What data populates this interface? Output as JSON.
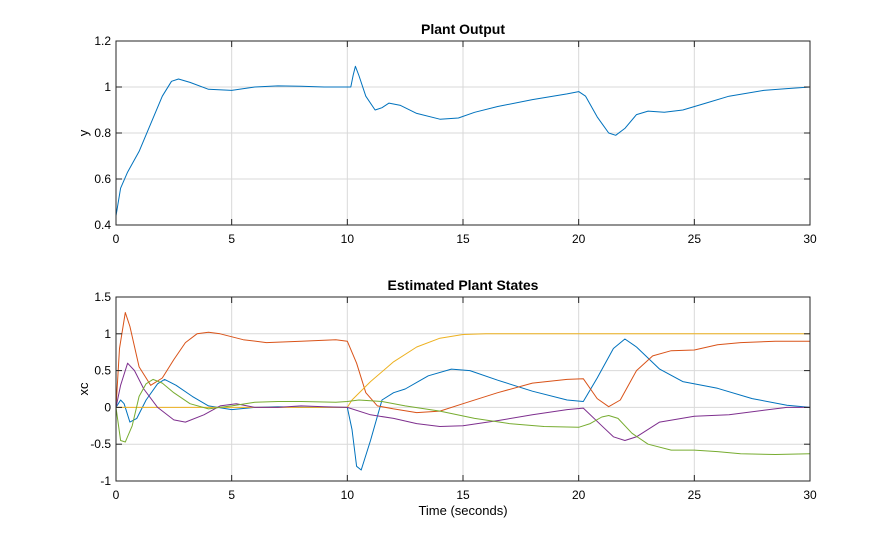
{
  "chart_data": [
    {
      "type": "line",
      "title": "Plant Output",
      "xlabel": "",
      "ylabel": "y",
      "xlim": [
        0,
        30
      ],
      "ylim": [
        0.4,
        1.2
      ],
      "xticks": [
        "0",
        "5",
        "10",
        "15",
        "20",
        "25",
        "30"
      ],
      "yticks": [
        "0.4",
        "0.6",
        "0.8",
        "1",
        "1.2"
      ],
      "grid": true,
      "series": [
        {
          "color": "#0072BD",
          "points": [
            [
              0,
              0.44
            ],
            [
              0.2,
              0.56
            ],
            [
              0.5,
              0.63
            ],
            [
              1.0,
              0.72
            ],
            [
              1.5,
              0.84
            ],
            [
              2.0,
              0.96
            ],
            [
              2.4,
              1.025
            ],
            [
              2.7,
              1.035
            ],
            [
              3.2,
              1.02
            ],
            [
              4.0,
              0.99
            ],
            [
              5.0,
              0.985
            ],
            [
              6.0,
              1.0
            ],
            [
              7.0,
              1.005
            ],
            [
              8.0,
              1.003
            ],
            [
              9.0,
              1.0
            ],
            [
              10.0,
              1.0
            ],
            [
              10.15,
              1.0
            ],
            [
              10.25,
              1.05
            ],
            [
              10.35,
              1.09
            ],
            [
              10.5,
              1.05
            ],
            [
              10.8,
              0.96
            ],
            [
              11.2,
              0.9
            ],
            [
              11.5,
              0.91
            ],
            [
              11.8,
              0.93
            ],
            [
              12.3,
              0.92
            ],
            [
              13.0,
              0.885
            ],
            [
              14.0,
              0.86
            ],
            [
              14.8,
              0.865
            ],
            [
              15.5,
              0.89
            ],
            [
              16.5,
              0.915
            ],
            [
              18.0,
              0.945
            ],
            [
              19.5,
              0.97
            ],
            [
              20.0,
              0.98
            ],
            [
              20.3,
              0.96
            ],
            [
              20.8,
              0.87
            ],
            [
              21.3,
              0.8
            ],
            [
              21.6,
              0.79
            ],
            [
              22.0,
              0.82
            ],
            [
              22.5,
              0.88
            ],
            [
              23.0,
              0.895
            ],
            [
              23.7,
              0.89
            ],
            [
              24.5,
              0.9
            ],
            [
              25.5,
              0.93
            ],
            [
              26.5,
              0.96
            ],
            [
              28.0,
              0.985
            ],
            [
              29.0,
              0.993
            ],
            [
              30.0,
              1.0
            ]
          ]
        }
      ]
    },
    {
      "type": "line",
      "title": "Estimated Plant States",
      "xlabel": "Time (seconds)",
      "ylabel": "xc",
      "xlim": [
        0,
        30
      ],
      "ylim": [
        -1,
        1.5
      ],
      "xticks": [
        "0",
        "5",
        "10",
        "15",
        "20",
        "25",
        "30"
      ],
      "yticks": [
        "-1",
        "-0.5",
        "0",
        "0.5",
        "1",
        "1.5"
      ],
      "grid": true,
      "series": [
        {
          "color": "#0072BD",
          "points": [
            [
              0,
              0
            ],
            [
              0.2,
              0.1
            ],
            [
              0.35,
              0.05
            ],
            [
              0.6,
              -0.2
            ],
            [
              0.9,
              -0.15
            ],
            [
              1.3,
              0.1
            ],
            [
              1.8,
              0.32
            ],
            [
              2.1,
              0.38
            ],
            [
              2.6,
              0.3
            ],
            [
              3.3,
              0.15
            ],
            [
              4.0,
              0.02
            ],
            [
              5.0,
              -0.03
            ],
            [
              6.0,
              0.0
            ],
            [
              7.0,
              0.01
            ],
            [
              8.0,
              0.0
            ],
            [
              9.0,
              0.0
            ],
            [
              10.0,
              0.0
            ],
            [
              10.2,
              -0.3
            ],
            [
              10.4,
              -0.8
            ],
            [
              10.6,
              -0.85
            ],
            [
              11.0,
              -0.45
            ],
            [
              11.5,
              0.1
            ],
            [
              12.0,
              0.2
            ],
            [
              12.5,
              0.25
            ],
            [
              13.5,
              0.43
            ],
            [
              14.5,
              0.52
            ],
            [
              15.3,
              0.5
            ],
            [
              16.5,
              0.37
            ],
            [
              18.0,
              0.22
            ],
            [
              19.5,
              0.1
            ],
            [
              20.2,
              0.08
            ],
            [
              20.8,
              0.4
            ],
            [
              21.5,
              0.8
            ],
            [
              22.0,
              0.93
            ],
            [
              22.5,
              0.82
            ],
            [
              23.5,
              0.52
            ],
            [
              24.5,
              0.35
            ],
            [
              26.0,
              0.26
            ],
            [
              27.5,
              0.12
            ],
            [
              29.0,
              0.03
            ],
            [
              30.0,
              0.0
            ]
          ]
        },
        {
          "color": "#D95319",
          "points": [
            [
              0,
              0
            ],
            [
              0.15,
              0.8
            ],
            [
              0.4,
              1.29
            ],
            [
              0.6,
              1.1
            ],
            [
              1.0,
              0.55
            ],
            [
              1.5,
              0.3
            ],
            [
              2.0,
              0.4
            ],
            [
              2.5,
              0.65
            ],
            [
              3.0,
              0.88
            ],
            [
              3.5,
              1.0
            ],
            [
              4.0,
              1.02
            ],
            [
              4.5,
              1.0
            ],
            [
              5.5,
              0.92
            ],
            [
              6.5,
              0.88
            ],
            [
              8.0,
              0.9
            ],
            [
              9.5,
              0.92
            ],
            [
              10.0,
              0.9
            ],
            [
              10.4,
              0.6
            ],
            [
              10.8,
              0.2
            ],
            [
              11.3,
              0.02
            ],
            [
              12.0,
              -0.02
            ],
            [
              13.0,
              -0.07
            ],
            [
              14.0,
              -0.05
            ],
            [
              15.0,
              0.05
            ],
            [
              16.5,
              0.2
            ],
            [
              18.0,
              0.33
            ],
            [
              19.5,
              0.38
            ],
            [
              20.2,
              0.39
            ],
            [
              20.8,
              0.12
            ],
            [
              21.3,
              0.01
            ],
            [
              21.8,
              0.1
            ],
            [
              22.5,
              0.5
            ],
            [
              23.2,
              0.7
            ],
            [
              24.0,
              0.77
            ],
            [
              25.0,
              0.78
            ],
            [
              26.0,
              0.85
            ],
            [
              27.0,
              0.88
            ],
            [
              28.5,
              0.9
            ],
            [
              30.0,
              0.9
            ]
          ]
        },
        {
          "color": "#EDB120",
          "points": [
            [
              0,
              0
            ],
            [
              10.0,
              0
            ],
            [
              10.2,
              0.1
            ],
            [
              11.0,
              0.35
            ],
            [
              12.0,
              0.62
            ],
            [
              13.0,
              0.82
            ],
            [
              14.0,
              0.94
            ],
            [
              15.0,
              0.99
            ],
            [
              16.0,
              1.0
            ],
            [
              20.0,
              1.0
            ],
            [
              25.0,
              1.0
            ],
            [
              30.0,
              1.0
            ]
          ]
        },
        {
          "color": "#7E2F8E",
          "points": [
            [
              0,
              0
            ],
            [
              0.2,
              0.3
            ],
            [
              0.5,
              0.6
            ],
            [
              0.8,
              0.5
            ],
            [
              1.2,
              0.25
            ],
            [
              1.8,
              0.0
            ],
            [
              2.5,
              -0.17
            ],
            [
              3.0,
              -0.2
            ],
            [
              3.8,
              -0.1
            ],
            [
              4.5,
              0.02
            ],
            [
              5.2,
              0.05
            ],
            [
              6.0,
              0.0
            ],
            [
              7.0,
              0.0
            ],
            [
              8.0,
              0.02
            ],
            [
              9.0,
              0.01
            ],
            [
              10.0,
              0.0
            ],
            [
              11.0,
              -0.1
            ],
            [
              12.0,
              -0.15
            ],
            [
              13.0,
              -0.22
            ],
            [
              14.0,
              -0.26
            ],
            [
              15.0,
              -0.25
            ],
            [
              16.5,
              -0.18
            ],
            [
              18.0,
              -0.1
            ],
            [
              19.5,
              -0.03
            ],
            [
              20.2,
              -0.01
            ],
            [
              21.0,
              -0.25
            ],
            [
              21.5,
              -0.4
            ],
            [
              22.0,
              -0.45
            ],
            [
              22.5,
              -0.4
            ],
            [
              23.5,
              -0.2
            ],
            [
              25.0,
              -0.12
            ],
            [
              26.5,
              -0.1
            ],
            [
              28.0,
              -0.04
            ],
            [
              29.0,
              0.0
            ],
            [
              30.0,
              0.0
            ]
          ]
        },
        {
          "color": "#77AC30",
          "points": [
            [
              0,
              0
            ],
            [
              0.2,
              -0.45
            ],
            [
              0.4,
              -0.47
            ],
            [
              0.7,
              -0.25
            ],
            [
              1.0,
              0.15
            ],
            [
              1.3,
              0.32
            ],
            [
              1.6,
              0.38
            ],
            [
              2.0,
              0.33
            ],
            [
              2.5,
              0.2
            ],
            [
              3.2,
              0.05
            ],
            [
              4.0,
              -0.02
            ],
            [
              5.0,
              0.02
            ],
            [
              6.0,
              0.07
            ],
            [
              7.0,
              0.08
            ],
            [
              8.0,
              0.08
            ],
            [
              9.5,
              0.07
            ],
            [
              10.0,
              0.08
            ],
            [
              10.5,
              0.1
            ],
            [
              11.5,
              0.08
            ],
            [
              12.5,
              0.02
            ],
            [
              14.0,
              -0.05
            ],
            [
              15.5,
              -0.15
            ],
            [
              17.0,
              -0.22
            ],
            [
              18.5,
              -0.26
            ],
            [
              20.0,
              -0.27
            ],
            [
              20.5,
              -0.22
            ],
            [
              21.0,
              -0.13
            ],
            [
              21.3,
              -0.11
            ],
            [
              21.7,
              -0.15
            ],
            [
              22.3,
              -0.35
            ],
            [
              23.0,
              -0.5
            ],
            [
              24.0,
              -0.58
            ],
            [
              25.0,
              -0.58
            ],
            [
              26.0,
              -0.6
            ],
            [
              27.0,
              -0.63
            ],
            [
              28.5,
              -0.64
            ],
            [
              30.0,
              -0.63
            ]
          ]
        }
      ]
    }
  ]
}
